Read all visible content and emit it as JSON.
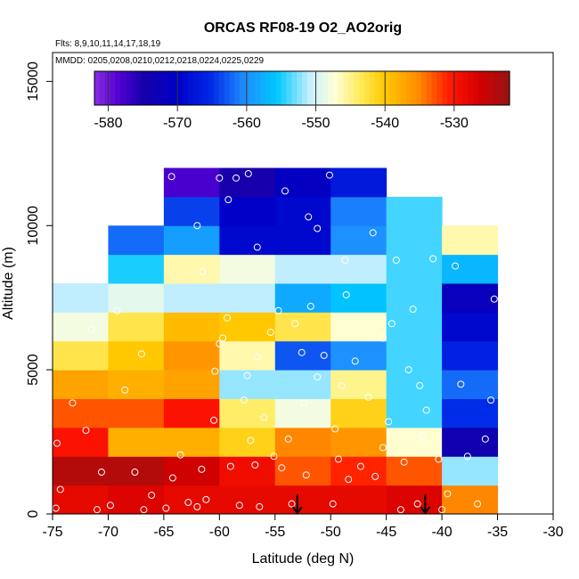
{
  "chart_data": {
    "type": "heatmap",
    "title": "ORCAS RF08-19 O2_AO2orig",
    "flights_label": "Flts: 8,9,10,11,14,17,18,19",
    "dates_label": "MMDD: 0205,0208,0210,0212,0218,0224,0225,0229",
    "xlabel": "Latitude (deg N)",
    "ylabel": "Altitude (m)",
    "xlim": [
      -75,
      -30
    ],
    "ylim": [
      0,
      16000
    ],
    "x_ticks": [
      -75,
      -70,
      -65,
      -60,
      -55,
      -50,
      -45,
      -40,
      -35,
      -30
    ],
    "y_ticks": [
      0,
      5000,
      10000,
      15000
    ],
    "colorbar": {
      "range": [
        -582,
        -522
      ],
      "ticks": [
        -580,
        -570,
        -560,
        -550,
        -540,
        -530
      ]
    },
    "lat_bin_width": 5,
    "alt_bin_height": 1000,
    "bins": [
      {
        "lat": -75,
        "alt": 0,
        "v": -528
      },
      {
        "lat": -75,
        "alt": 1000,
        "v": -524
      },
      {
        "lat": -75,
        "alt": 2000,
        "v": -530
      },
      {
        "lat": -75,
        "alt": 3000,
        "v": -533
      },
      {
        "lat": -75,
        "alt": 4000,
        "v": -537
      },
      {
        "lat": -75,
        "alt": 5000,
        "v": -543
      },
      {
        "lat": -75,
        "alt": 6000,
        "v": -548
      },
      {
        "lat": -75,
        "alt": 7000,
        "v": -551
      },
      {
        "lat": -70,
        "alt": 0,
        "v": -527
      },
      {
        "lat": -70,
        "alt": 1000,
        "v": -524
      },
      {
        "lat": -70,
        "alt": 2000,
        "v": -538
      },
      {
        "lat": -70,
        "alt": 3000,
        "v": -533
      },
      {
        "lat": -70,
        "alt": 4000,
        "v": -538
      },
      {
        "lat": -70,
        "alt": 5000,
        "v": -540
      },
      {
        "lat": -70,
        "alt": 6000,
        "v": -543
      },
      {
        "lat": -70,
        "alt": 7000,
        "v": -549
      },
      {
        "lat": -70,
        "alt": 8000,
        "v": -555
      },
      {
        "lat": -70,
        "alt": 9000,
        "v": -562
      },
      {
        "lat": -65,
        "alt": 0,
        "v": -528
      },
      {
        "lat": -65,
        "alt": 1000,
        "v": -526
      },
      {
        "lat": -65,
        "alt": 2000,
        "v": -538
      },
      {
        "lat": -65,
        "alt": 3000,
        "v": -530
      },
      {
        "lat": -65,
        "alt": 4000,
        "v": -537
      },
      {
        "lat": -65,
        "alt": 5000,
        "v": -536
      },
      {
        "lat": -65,
        "alt": 6000,
        "v": -539
      },
      {
        "lat": -65,
        "alt": 7000,
        "v": -551
      },
      {
        "lat": -65,
        "alt": 8000,
        "v": -546
      },
      {
        "lat": -65,
        "alt": 9000,
        "v": -559
      },
      {
        "lat": -65,
        "alt": 10000,
        "v": -564
      },
      {
        "lat": -65,
        "alt": 11000,
        "v": -578
      },
      {
        "lat": -60,
        "alt": 0,
        "v": -528
      },
      {
        "lat": -60,
        "alt": 1000,
        "v": -529
      },
      {
        "lat": -60,
        "alt": 2000,
        "v": -541
      },
      {
        "lat": -60,
        "alt": 3000,
        "v": -544
      },
      {
        "lat": -60,
        "alt": 4000,
        "v": -552
      },
      {
        "lat": -60,
        "alt": 5000,
        "v": -546
      },
      {
        "lat": -60,
        "alt": 6000,
        "v": -540
      },
      {
        "lat": -60,
        "alt": 7000,
        "v": -551
      },
      {
        "lat": -60,
        "alt": 8000,
        "v": -548
      },
      {
        "lat": -60,
        "alt": 9000,
        "v": -569
      },
      {
        "lat": -60,
        "alt": 10000,
        "v": -570
      },
      {
        "lat": -60,
        "alt": 11000,
        "v": -575
      },
      {
        "lat": -55,
        "alt": 0,
        "v": -528
      },
      {
        "lat": -55,
        "alt": 1000,
        "v": -533
      },
      {
        "lat": -55,
        "alt": 2000,
        "v": -535
      },
      {
        "lat": -55,
        "alt": 3000,
        "v": -548
      },
      {
        "lat": -55,
        "alt": 4000,
        "v": -552
      },
      {
        "lat": -55,
        "alt": 5000,
        "v": -563
      },
      {
        "lat": -55,
        "alt": 6000,
        "v": -543
      },
      {
        "lat": -55,
        "alt": 7000,
        "v": -558
      },
      {
        "lat": -55,
        "alt": 8000,
        "v": -551
      },
      {
        "lat": -55,
        "alt": 9000,
        "v": -569
      },
      {
        "lat": -55,
        "alt": 10000,
        "v": -569
      },
      {
        "lat": -55,
        "alt": 11000,
        "v": -571
      },
      {
        "lat": -50,
        "alt": 0,
        "v": -528
      },
      {
        "lat": -50,
        "alt": 1000,
        "v": -531
      },
      {
        "lat": -50,
        "alt": 2000,
        "v": -536
      },
      {
        "lat": -50,
        "alt": 3000,
        "v": -541
      },
      {
        "lat": -50,
        "alt": 4000,
        "v": -545
      },
      {
        "lat": -50,
        "alt": 5000,
        "v": -560
      },
      {
        "lat": -50,
        "alt": 6000,
        "v": -547
      },
      {
        "lat": -50,
        "alt": 7000,
        "v": -556
      },
      {
        "lat": -50,
        "alt": 8000,
        "v": -551
      },
      {
        "lat": -50,
        "alt": 9000,
        "v": -560
      },
      {
        "lat": -50,
        "alt": 10000,
        "v": -561
      },
      {
        "lat": -50,
        "alt": 11000,
        "v": -567
      },
      {
        "lat": -45,
        "alt": 0,
        "v": -527
      },
      {
        "lat": -45,
        "alt": 1000,
        "v": -533
      },
      {
        "lat": -45,
        "alt": 2000,
        "v": -547
      },
      {
        "lat": -45,
        "alt": 3000,
        "v": -554
      },
      {
        "lat": -45,
        "alt": 4000,
        "v": -554
      },
      {
        "lat": -45,
        "alt": 5000,
        "v": -554
      },
      {
        "lat": -45,
        "alt": 6000,
        "v": -554
      },
      {
        "lat": -45,
        "alt": 7000,
        "v": -554
      },
      {
        "lat": -45,
        "alt": 8000,
        "v": -554
      },
      {
        "lat": -45,
        "alt": 9000,
        "v": -554
      },
      {
        "lat": -45,
        "alt": 10000,
        "v": -554
      },
      {
        "lat": -40,
        "alt": 0,
        "v": -535
      },
      {
        "lat": -40,
        "alt": 1000,
        "v": -552
      },
      {
        "lat": -40,
        "alt": 2000,
        "v": -574
      },
      {
        "lat": -40,
        "alt": 3000,
        "v": -565
      },
      {
        "lat": -40,
        "alt": 4000,
        "v": -562
      },
      {
        "lat": -40,
        "alt": 5000,
        "v": -566
      },
      {
        "lat": -40,
        "alt": 6000,
        "v": -569
      },
      {
        "lat": -40,
        "alt": 7000,
        "v": -572
      },
      {
        "lat": -40,
        "alt": 8000,
        "v": -557
      },
      {
        "lat": -40,
        "alt": 9000,
        "v": -546
      }
    ],
    "arrows_lat": [
      -53,
      -41.5
    ],
    "samples": [
      [
        -74.7,
        200
      ],
      [
        -74.3,
        850
      ],
      [
        -74.6,
        2450
      ],
      [
        -73.2,
        3850
      ],
      [
        -72.0,
        2900
      ],
      [
        -71.5,
        6400
      ],
      [
        -71.0,
        150
      ],
      [
        -70.6,
        1450
      ],
      [
        -69.8,
        300
      ],
      [
        -69.2,
        7050
      ],
      [
        -68.5,
        4300
      ],
      [
        -67.6,
        1450
      ],
      [
        -67.0,
        5550
      ],
      [
        -66.8,
        150
      ],
      [
        -66.1,
        650
      ],
      [
        -64.8,
        200
      ],
      [
        -64.2,
        1250
      ],
      [
        -63.5,
        2050
      ],
      [
        -62.8,
        400
      ],
      [
        -62.0,
        250
      ],
      [
        -61.6,
        1550
      ],
      [
        -61.2,
        500
      ],
      [
        -60.5,
        3250
      ],
      [
        -60.4,
        4950
      ],
      [
        -60.0,
        5900
      ],
      [
        -59.7,
        6100
      ],
      [
        -59.3,
        6800
      ],
      [
        -59.0,
        1650
      ],
      [
        -58.5,
        11650
      ],
      [
        -58.2,
        300
      ],
      [
        -57.8,
        3950
      ],
      [
        -57.5,
        4800
      ],
      [
        -57.2,
        2550
      ],
      [
        -56.8,
        1700
      ],
      [
        -56.6,
        5450
      ],
      [
        -56.4,
        250
      ],
      [
        -56.0,
        3350
      ],
      [
        -55.4,
        6300
      ],
      [
        -55.1,
        2000
      ],
      [
        -54.7,
        7050
      ],
      [
        -54.4,
        1600
      ],
      [
        -53.8,
        2600
      ],
      [
        -53.5,
        350
      ],
      [
        -53.2,
        6600
      ],
      [
        -52.6,
        5600
      ],
      [
        -52.4,
        3850
      ],
      [
        -52.2,
        1350
      ],
      [
        -51.8,
        7200
      ],
      [
        -51.2,
        4750
      ],
      [
        -50.6,
        5500
      ],
      [
        -50.1,
        11750
      ],
      [
        -49.8,
        350
      ],
      [
        -49.6,
        2950
      ],
      [
        -49.3,
        1900
      ],
      [
        -49.0,
        4450
      ],
      [
        -48.7,
        8800
      ],
      [
        -48.4,
        1200
      ],
      [
        -47.8,
        5300
      ],
      [
        -47.3,
        1650
      ],
      [
        -46.6,
        4050
      ],
      [
        -46.0,
        1300
      ],
      [
        -45.3,
        2300
      ],
      [
        -44.8,
        3200
      ],
      [
        -44.5,
        6600
      ],
      [
        -43.7,
        150
      ],
      [
        -43.4,
        1800
      ],
      [
        -43.0,
        5000
      ],
      [
        -42.6,
        7100
      ],
      [
        -42.2,
        350
      ],
      [
        -42.0,
        4450
      ],
      [
        -41.8,
        2700
      ],
      [
        -41.4,
        3600
      ],
      [
        -40.8,
        8850
      ],
      [
        -40.3,
        1900
      ],
      [
        -40.0,
        150
      ],
      [
        -39.5,
        700
      ],
      [
        -38.8,
        8600
      ],
      [
        -38.3,
        4500
      ],
      [
        -37.7,
        2000
      ],
      [
        -36.8,
        350
      ],
      [
        -36.1,
        2600
      ],
      [
        -35.6,
        3950
      ],
      [
        -35.3,
        7450
      ],
      [
        -60.0,
        11650
      ],
      [
        -59.2,
        10900
      ],
      [
        -57.4,
        11800
      ],
      [
        -56.6,
        9250
      ],
      [
        -52.0,
        10300
      ],
      [
        -62.0,
        10000
      ],
      [
        -64.3,
        11700
      ],
      [
        -61.5,
        8400
      ],
      [
        -54.1,
        11200
      ],
      [
        -46.2,
        9750
      ],
      [
        -51.2,
        9900
      ],
      [
        -45.3,
        6100
      ],
      [
        -48.6,
        7600
      ],
      [
        -44.1,
        8800
      ]
    ]
  }
}
